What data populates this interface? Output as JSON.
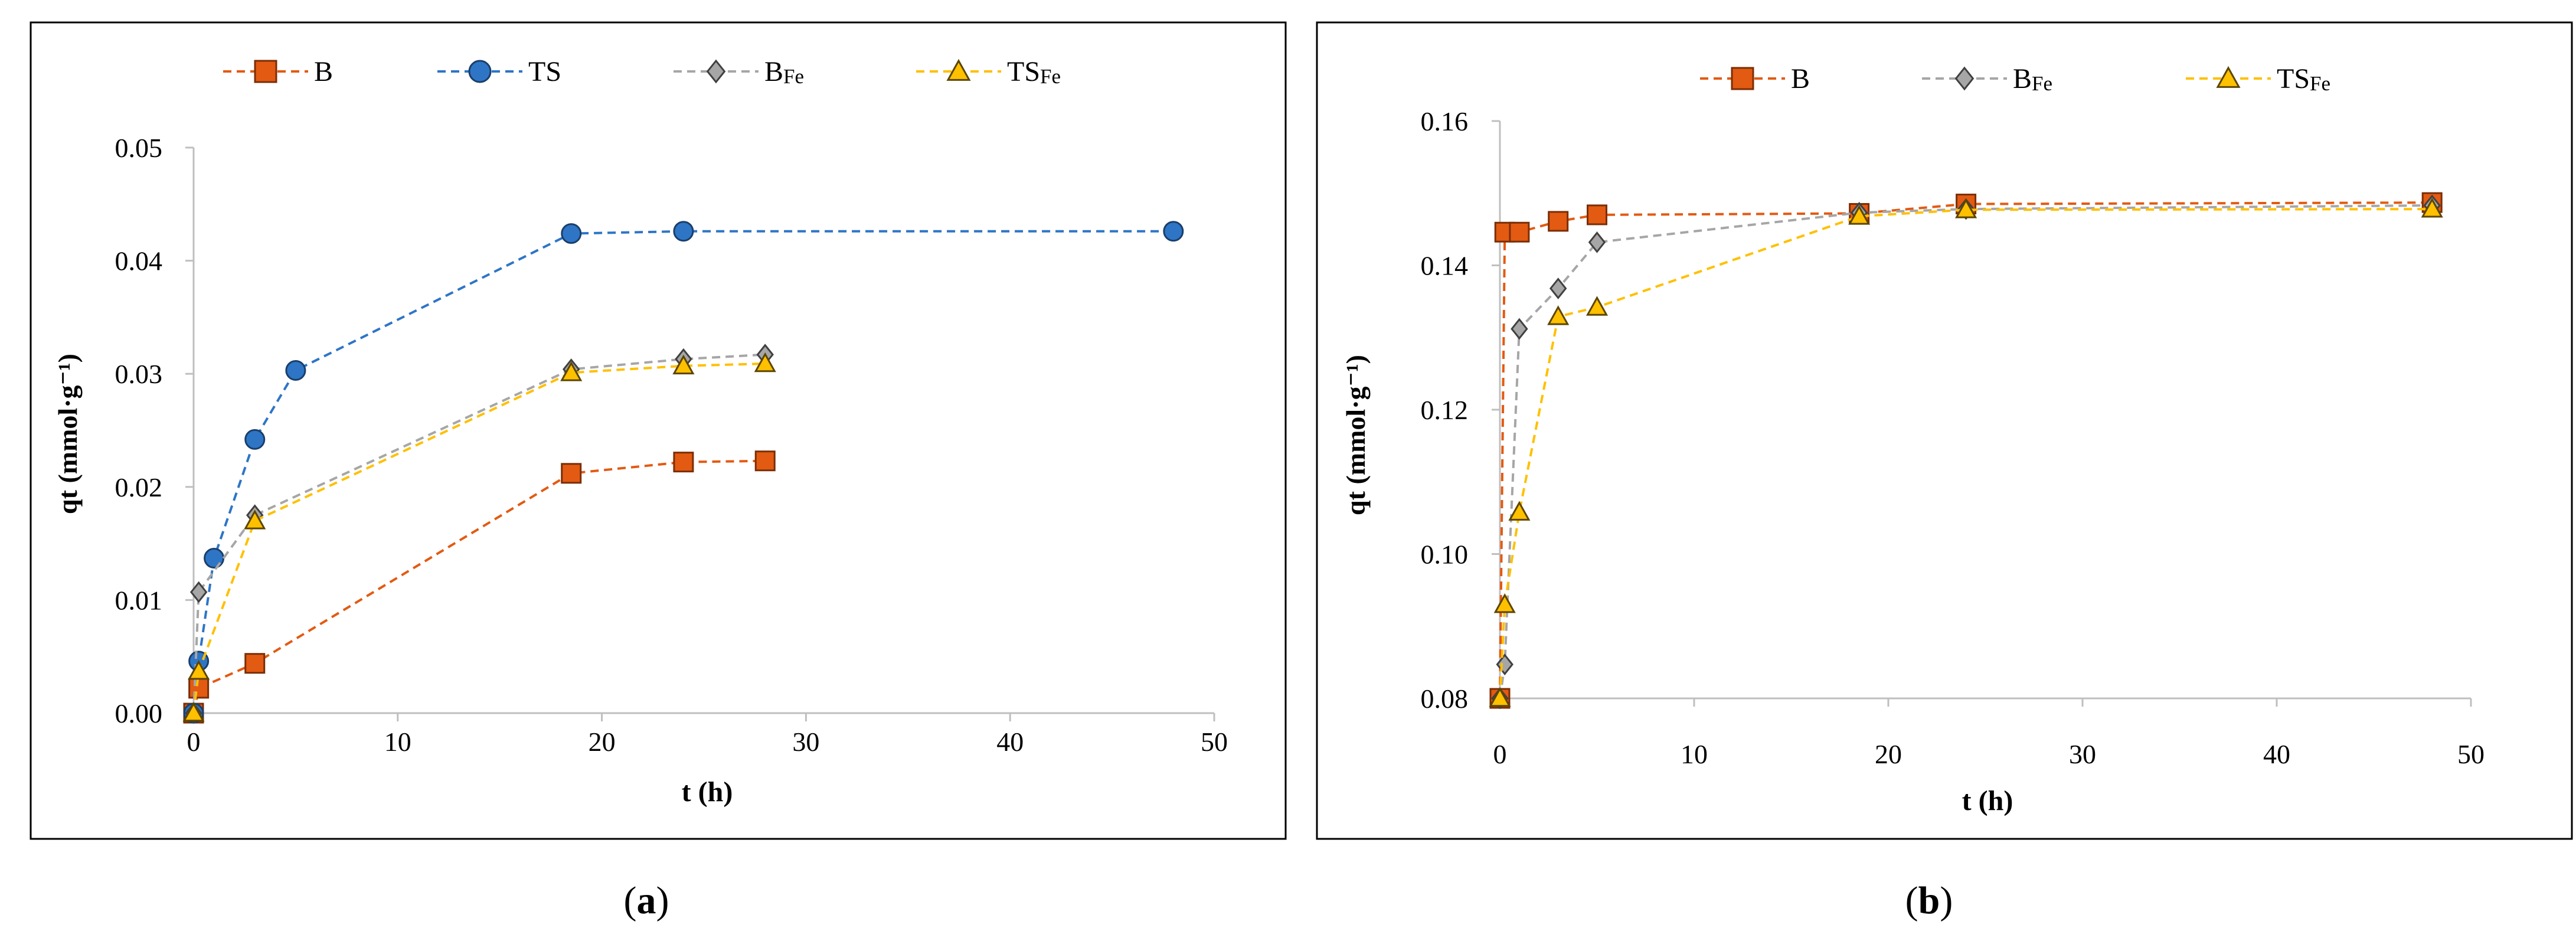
{
  "chart_data": [
    {
      "type": "line",
      "panel_label": "a",
      "xlabel": "t (h)",
      "ylabel": "qt (mmol·g⁻¹)",
      "xlim": [
        0,
        50
      ],
      "ylim": [
        0,
        0.05
      ],
      "x_ticks": [
        0,
        10,
        20,
        30,
        40,
        50
      ],
      "x_tick_labels": [
        "0",
        "10",
        "20",
        "30",
        "40",
        "50"
      ],
      "y_ticks": [
        0,
        0.01,
        0.02,
        0.03,
        0.04,
        0.05
      ],
      "y_tick_labels": [
        "0.00",
        "0.01",
        "0.02",
        "0.03",
        "0.04",
        "0.05"
      ],
      "legend_position": "top",
      "grid": false,
      "series": [
        {
          "name": "B",
          "sub": "",
          "marker": "square",
          "color": "#E35A12",
          "x": [
            0,
            0.25,
            3,
            18.5,
            24,
            28
          ],
          "y": [
            0.0,
            0.0022,
            0.0044,
            0.0212,
            0.0222,
            0.0223
          ]
        },
        {
          "name": "TS",
          "sub": "",
          "marker": "circle",
          "color": "#2E75C6",
          "x": [
            0,
            0.25,
            1,
            3,
            5,
            18.5,
            24,
            48
          ],
          "y": [
            0.0,
            0.0046,
            0.0137,
            0.0242,
            0.0303,
            0.0424,
            0.0426,
            0.0426
          ]
        },
        {
          "name": "B",
          "sub": "Fe",
          "marker": "diamond",
          "color": "#A6A6A6",
          "x": [
            0,
            0.25,
            3,
            18.5,
            24,
            28
          ],
          "y": [
            0.0,
            0.0107,
            0.0175,
            0.0304,
            0.0313,
            0.0317
          ]
        },
        {
          "name": "TS",
          "sub": "Fe",
          "marker": "triangle",
          "color": "#FFC000",
          "x": [
            0,
            0.25,
            3,
            18.5,
            24,
            28
          ],
          "y": [
            0.0,
            0.0037,
            0.017,
            0.0301,
            0.0307,
            0.0309
          ]
        }
      ]
    },
    {
      "type": "line",
      "panel_label": "b",
      "xlabel": "t (h)",
      "ylabel": "qt (mmol·g⁻¹)",
      "xlim": [
        0,
        50
      ],
      "ylim": [
        0.08,
        0.16
      ],
      "x_ticks": [
        0,
        10,
        20,
        30,
        40,
        50
      ],
      "x_tick_labels": [
        "0",
        "10",
        "20",
        "30",
        "40",
        "50"
      ],
      "y_ticks": [
        0.08,
        0.1,
        0.12,
        0.14,
        0.16
      ],
      "y_tick_labels": [
        "0.08",
        "0.10",
        "0.12",
        "0.14",
        "0.16"
      ],
      "legend_position": "top",
      "grid": false,
      "series": [
        {
          "name": "B",
          "sub": "",
          "marker": "square",
          "color": "#E35A12",
          "x": [
            0,
            0.25,
            1,
            3,
            5,
            18.5,
            24,
            48
          ],
          "y": [
            0.08,
            0.1446,
            0.1446,
            0.1461,
            0.147,
            0.1472,
            0.1485,
            0.1487
          ]
        },
        {
          "name": "B",
          "sub": "Fe",
          "marker": "diamond",
          "color": "#A6A6A6",
          "x": [
            0,
            0.25,
            1,
            3,
            5,
            18.5,
            24,
            48
          ],
          "y": [
            0.08,
            0.0847,
            0.1312,
            0.1368,
            0.1432,
            0.1473,
            0.1478,
            0.1483
          ]
        },
        {
          "name": "TS",
          "sub": "Fe",
          "marker": "triangle",
          "color": "#FFC000",
          "x": [
            0,
            0.25,
            1,
            3,
            5,
            18.5,
            24,
            48
          ],
          "y": [
            0.08,
            0.093,
            0.1058,
            0.1329,
            0.1342,
            0.1468,
            0.1477,
            0.1478
          ]
        }
      ]
    }
  ]
}
